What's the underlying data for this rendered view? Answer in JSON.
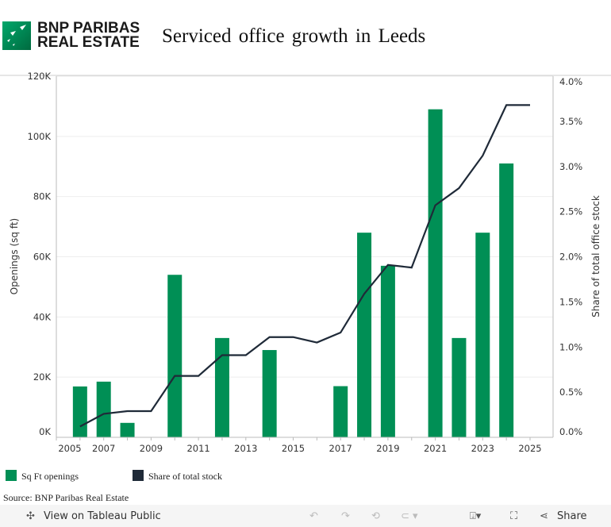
{
  "header": {
    "logo_line1": "BNP PARIBAS",
    "logo_line2": "REAL ESTATE",
    "title": "Serviced office growth in Leeds"
  },
  "colors": {
    "bar": "#008f55",
    "line": "#1f2a38"
  },
  "chart_data": {
    "type": "bar+line",
    "title": "Serviced office growth in Leeds",
    "ylabel": "Openings (sq ft)",
    "y2label": "Share of total office stock",
    "ylim": [
      0,
      120000
    ],
    "y2lim": [
      0,
      4.0
    ],
    "yticks": [
      "0K",
      "20K",
      "40K",
      "60K",
      "80K",
      "100K",
      "120K"
    ],
    "y2ticks": [
      "0.0%",
      "0.5%",
      "1.0%",
      "1.5%",
      "2.0%",
      "2.5%",
      "3.0%",
      "3.5%",
      "4.0%"
    ],
    "xticks": [
      "2005",
      "2007",
      "2009",
      "2011",
      "2013",
      "2015",
      "2017",
      "2019",
      "2021",
      "2023",
      "2025"
    ],
    "bars": {
      "name": "Sq Ft openings",
      "years": [
        2006,
        2007,
        2008,
        2010,
        2012,
        2014,
        2017,
        2018,
        2019,
        2021,
        2022,
        2023,
        2024
      ],
      "values": [
        16900,
        18500,
        4800,
        54000,
        33000,
        29000,
        17000,
        68000,
        57000,
        109000,
        33000,
        68000,
        91000
      ]
    },
    "line": {
      "name": "Share of total stock",
      "years": [
        2006,
        2007,
        2008,
        2009,
        2010,
        2011,
        2012,
        2013,
        2014,
        2015,
        2016,
        2017,
        2018,
        2019,
        2020,
        2021,
        2022,
        2023,
        2024,
        2025
      ],
      "values": [
        0.12,
        0.26,
        0.29,
        0.29,
        0.68,
        0.68,
        0.91,
        0.91,
        1.11,
        1.11,
        1.05,
        1.16,
        1.59,
        1.91,
        1.88,
        2.57,
        2.76,
        3.12,
        3.68,
        3.68
      ]
    },
    "legend_position": "bottom-left"
  },
  "legend": {
    "bars": "Sq Ft openings",
    "line": "Share of total stock"
  },
  "source": "Source: BNP Paribas Real Estate",
  "toolbar": {
    "view": "View on Tableau Public",
    "share": "Share"
  }
}
